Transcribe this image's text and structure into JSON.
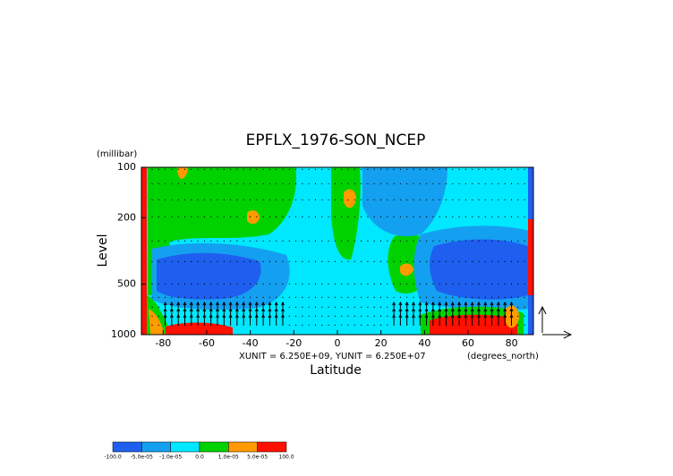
{
  "chart_data": {
    "type": "contour",
    "title": "EPFLX_1976-SON_NCEP",
    "x_label": "Latitude",
    "x_units": "(degrees_north)",
    "y_label": "Level",
    "y_units": "(millibar)",
    "annotation": "XUNIT = 6.250E+09, YUNIT = 6.250E+07",
    "xlim": [
      -90,
      90
    ],
    "xticks": [
      -80,
      -60,
      -40,
      -20,
      0,
      20,
      40,
      60,
      80
    ],
    "ylim": [
      1000,
      100
    ],
    "yticks": [
      100,
      200,
      500,
      1000
    ],
    "y_log": true,
    "levels": [
      {
        "value": -100,
        "label": "-100.0"
      },
      {
        "value": -5e-05,
        "label": "-5.0e-05"
      },
      {
        "value": -1e-05,
        "label": "-1.0e-05"
      },
      {
        "value": 0,
        "label": "0.0"
      },
      {
        "value": 1e-05,
        "label": "1.0e-05"
      },
      {
        "value": 5e-05,
        "label": "5.0e-05"
      },
      {
        "value": 100,
        "label": "100.0"
      }
    ],
    "level_colors": [
      "#1e5ff0",
      "#14a0f0",
      "#00e8ff",
      "#00d200",
      "#ff9a00",
      "#ff1000"
    ]
  }
}
